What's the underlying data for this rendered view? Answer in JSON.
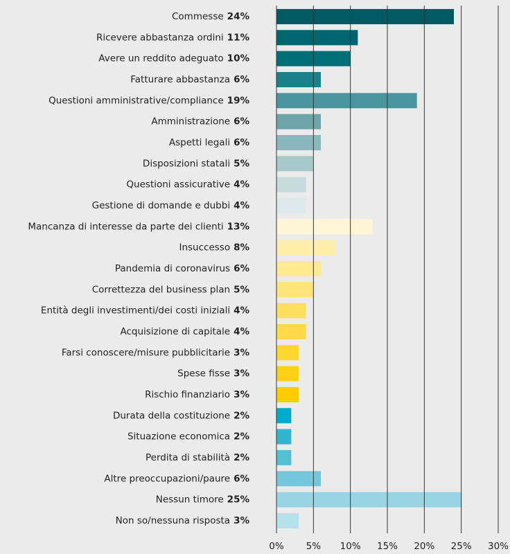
{
  "chart_data": {
    "type": "barh",
    "categories": [
      "Commesse",
      "Ricevere abbastanza ordini",
      "Avere un reddito adeguato",
      "Fatturare abbastanza",
      "Questioni amministrative/compliance",
      "Amministrazione",
      "Aspetti legali",
      "Disposizioni statali",
      "Questioni assicurative",
      "Gestione di domande e dubbi",
      "Mancanza di interesse da parte dei clienti",
      "Insuccesso",
      "Pandemia di coronavirus",
      "Correttezza del business plan",
      "Entità degli investimenti/dei costi iniziali",
      "Acquisizione di capitale",
      "Farsi conoscere/misure pubblicitarie",
      "Spese fisse",
      "Rischio finanziario",
      "Durata della costituzione",
      "Situazione economica",
      "Perdita di stabilità",
      "Altre preoccupazioni/paure",
      "Nessun timore",
      "Non so/nessuna risposta"
    ],
    "values": [
      24,
      11,
      10,
      6,
      19,
      6,
      6,
      5,
      4,
      4,
      13,
      8,
      6,
      5,
      4,
      4,
      3,
      3,
      3,
      2,
      2,
      2,
      6,
      25,
      3
    ],
    "value_labels": [
      "24%",
      "11%",
      "10%",
      "6%",
      "19%",
      "6%",
      "6%",
      "5%",
      "4%",
      "4%",
      "13%",
      "8%",
      "6%",
      "5%",
      "4%",
      "4%",
      "3%",
      "3%",
      "3%",
      "2%",
      "2%",
      "2%",
      "6%",
      "25%",
      "3%"
    ],
    "colors": [
      "#005a64",
      "#00656e",
      "#006f78",
      "#1a818a",
      "#4a969f",
      "#6ea5ab",
      "#8ab8bc",
      "#a8c9cb",
      "#c6dadc",
      "#dde9ea",
      "#fff6d6",
      "#ffefa8",
      "#ffea8f",
      "#ffe47a",
      "#ffdf5e",
      "#ffd94a",
      "#ffd530",
      "#ffd01a",
      "#ffcc00",
      "#00aacc",
      "#33b5d1",
      "#55bfd6",
      "#75c8dc",
      "#97d5e4",
      "#b5e1ec"
    ],
    "xlim": [
      0,
      30
    ],
    "xticks": [
      {
        "value": 0,
        "label": "0%"
      },
      {
        "value": 5,
        "label": "5%"
      },
      {
        "value": 10,
        "label": "10%"
      },
      {
        "value": 15,
        "label": "15%"
      },
      {
        "value": 20,
        "label": "20%"
      },
      {
        "value": 25,
        "label": "25%"
      },
      {
        "value": 30,
        "label": "30%"
      }
    ],
    "grid": true
  }
}
